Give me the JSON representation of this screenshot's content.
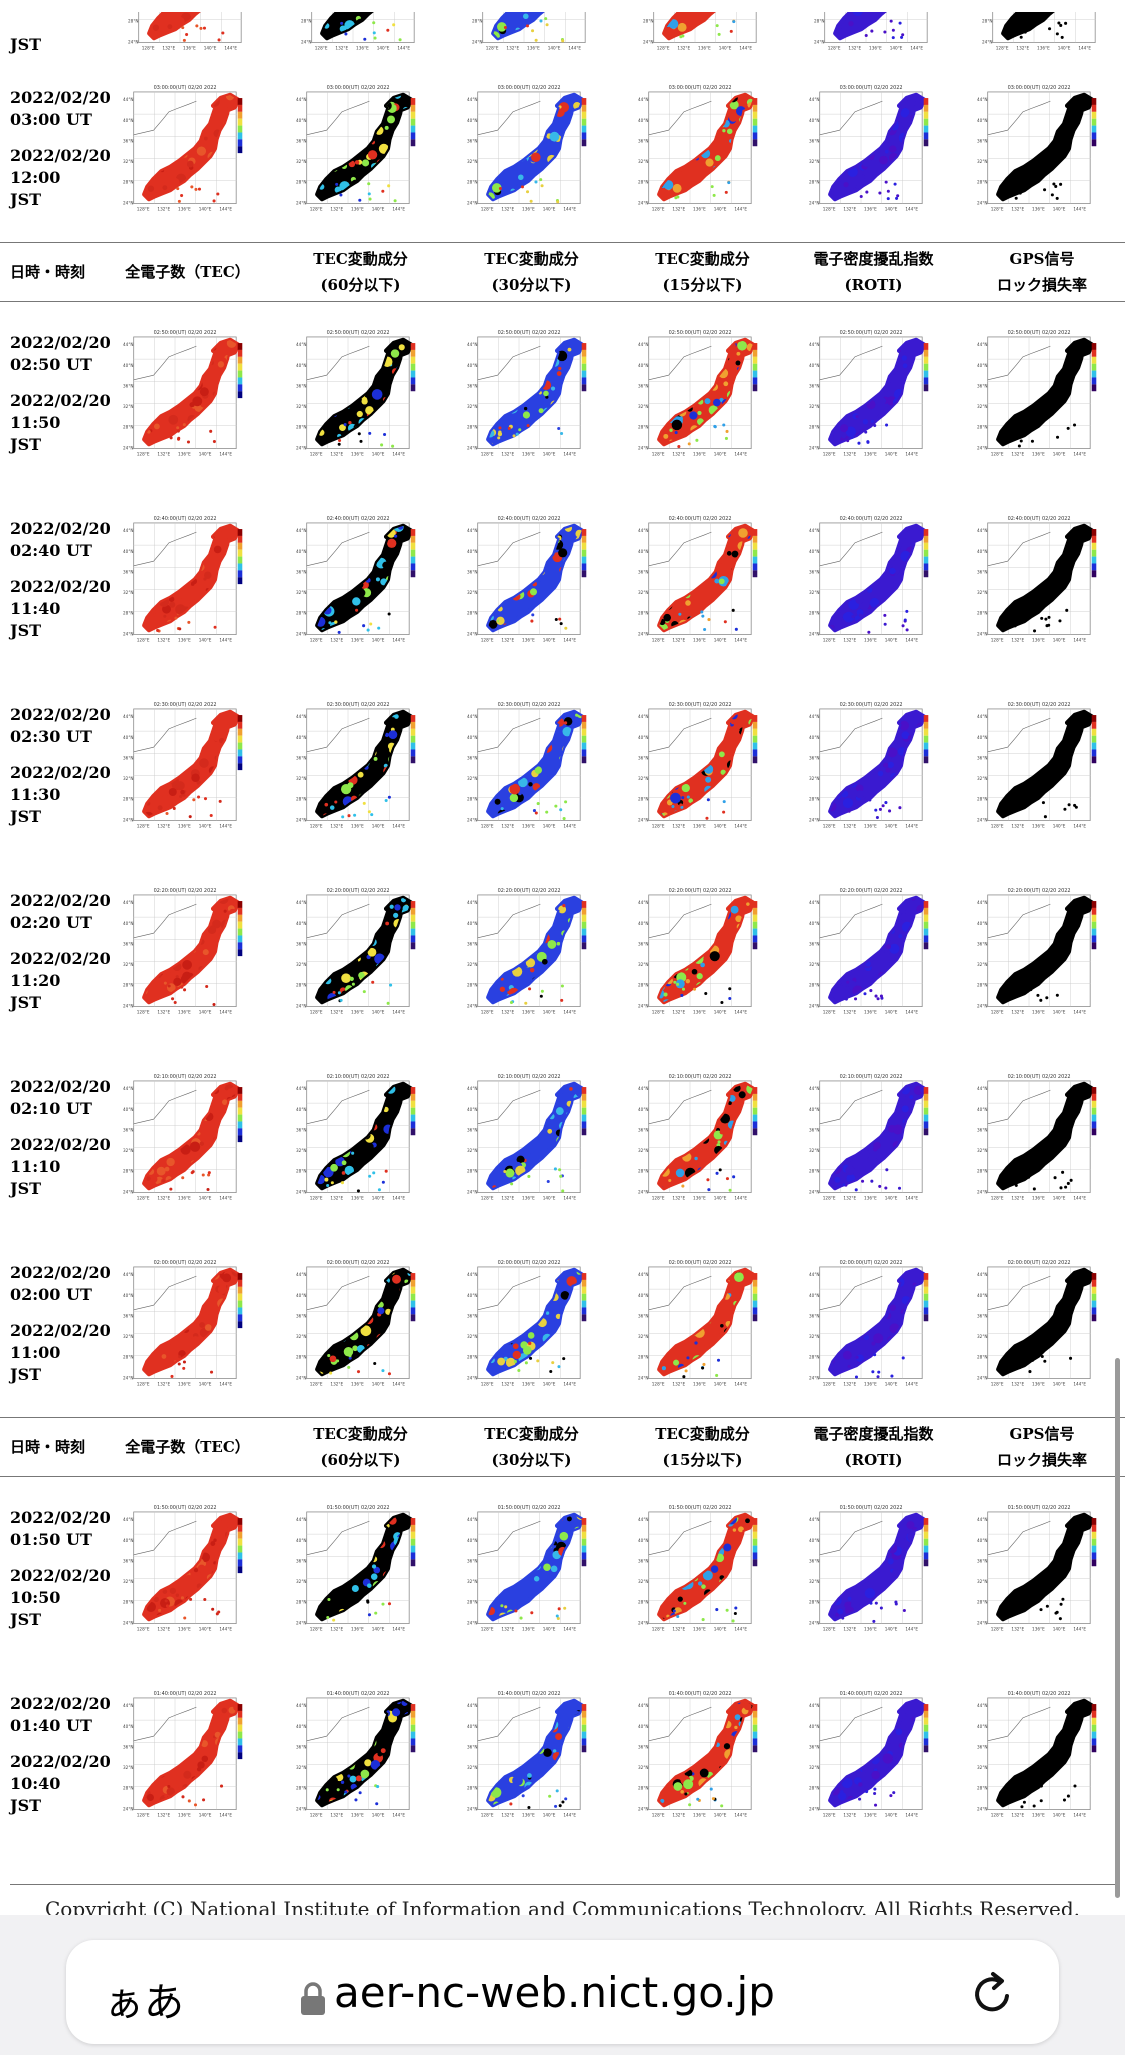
{
  "header": {
    "col0": "日時・時刻",
    "col1": "全電子数（TEC）",
    "col2a": "TEC変動成分",
    "col2b": "(60分以下)",
    "col3a": "TEC変動成分",
    "col3b": "(30分以下)",
    "col4a": "TEC変動成分",
    "col4b": "(15分以下)",
    "col5a": "電子密度擾乱指数",
    "col5b": "(ROTI)",
    "col6a": "GPS信号",
    "col6b": "ロック損失率"
  },
  "partial_top_label": "JST",
  "rows": [
    {
      "date_ut": "2022/02/20",
      "time_ut": "03:00 UT",
      "date_jst": "2022/02/20",
      "time_jst": "12:00",
      "jst": "JST",
      "map_title": "03:00:00(UT) 02/20 2022"
    },
    {
      "date_ut": "2022/02/20",
      "time_ut": "02:50 UT",
      "date_jst": "2022/02/20",
      "time_jst": "11:50",
      "jst": "JST",
      "map_title": "02:50:00(UT) 02/20 2022"
    },
    {
      "date_ut": "2022/02/20",
      "time_ut": "02:40 UT",
      "date_jst": "2022/02/20",
      "time_jst": "11:40",
      "jst": "JST",
      "map_title": "02:40:00(UT) 02/20 2022"
    },
    {
      "date_ut": "2022/02/20",
      "time_ut": "02:30 UT",
      "date_jst": "2022/02/20",
      "time_jst": "11:30",
      "jst": "JST",
      "map_title": "02:30:00(UT) 02/20 2022"
    },
    {
      "date_ut": "2022/02/20",
      "time_ut": "02:20 UT",
      "date_jst": "2022/02/20",
      "time_jst": "11:20",
      "jst": "JST",
      "map_title": "02:20:00(UT) 02/20 2022"
    },
    {
      "date_ut": "2022/02/20",
      "time_ut": "02:10 UT",
      "date_jst": "2022/02/20",
      "time_jst": "11:10",
      "jst": "JST",
      "map_title": "02:10:00(UT) 02/20 2022"
    },
    {
      "date_ut": "2022/02/20",
      "time_ut": "02:00 UT",
      "date_jst": "2022/02/20",
      "time_jst": "11:00",
      "jst": "JST",
      "map_title": "02:00:00(UT) 02/20 2022"
    },
    {
      "date_ut": "2022/02/20",
      "time_ut": "01:50 UT",
      "date_jst": "2022/02/20",
      "time_jst": "10:50",
      "jst": "JST",
      "map_title": "01:50:00(UT) 02/20 2022"
    },
    {
      "date_ut": "2022/02/20",
      "time_ut": "01:40 UT",
      "date_jst": "2022/02/20",
      "time_jst": "10:40",
      "jst": "JST",
      "map_title": "01:40:00(UT) 02/20 2022"
    }
  ],
  "map_columns": [
    {
      "kind": "tec",
      "colors": [
        "#e03020",
        "#d42a1c",
        "#e8562a",
        "#c81e14"
      ]
    },
    {
      "kind": "dtec60",
      "colors": [
        "#000000",
        "#1c2fd8",
        "#30c0e8",
        "#8ee84a",
        "#f0e040",
        "#e03020"
      ]
    },
    {
      "kind": "dtec30",
      "colors": [
        "#2a40e0",
        "#38b8e8",
        "#8ee84a",
        "#e8d040",
        "#e03020",
        "#000000"
      ]
    },
    {
      "kind": "dtec15",
      "colors": [
        "#e03020",
        "#f0a030",
        "#8ee84a",
        "#30a0e8",
        "#1c2fd8",
        "#000000"
      ]
    },
    {
      "kind": "roti",
      "colors": [
        "#3a1ad0",
        "#4a10c8",
        "#2a20e0"
      ]
    },
    {
      "kind": "lol",
      "colors": [
        "#000000"
      ]
    }
  ],
  "map_axis": {
    "lon_ticks": [
      "128°E",
      "132°E",
      "136°E",
      "140°E",
      "144°E"
    ],
    "lat_ticks": [
      "44°N",
      "40°N",
      "36°N",
      "32°N",
      "28°N",
      "24°N"
    ]
  },
  "copyright": "Copyright (C) National Institute of Information and Communications Technology. All Rights Reserved.",
  "browser": {
    "text_size_button": "ぁあ",
    "url": "aer-nc-web.nict.go.jp"
  }
}
